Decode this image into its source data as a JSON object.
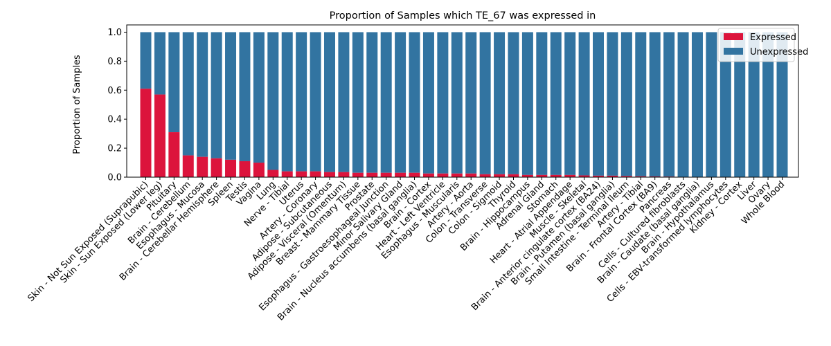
{
  "chart_data": {
    "type": "bar",
    "stacked": true,
    "title": "Proportion of Samples which TE_67 was expressed in",
    "ylabel": "Proportion of Samples",
    "xlabel": "",
    "ylim": [
      0,
      1.05
    ],
    "yticks": [
      "0.0",
      "0.2",
      "0.4",
      "0.6",
      "0.8",
      "1.0"
    ],
    "legend_position": "top-right",
    "categories": [
      "Skin - Not Sun Exposed (Suprapubic)",
      "Skin - Sun Exposed (Lower leg)",
      "Pituitary",
      "Brain - Cerebellum",
      "Esophagus - Mucosa",
      "Brain - Cerebellar Hemisphere",
      "Spleen",
      "Testis",
      "Vagina",
      "Lung",
      "Nerve - Tibial",
      "Uterus",
      "Artery - Coronary",
      "Adipose - Subcutaneous",
      "Adipose - Visceral (Omentum)",
      "Breast - Mammary Tissue",
      "Prostate",
      "Esophagus - Gastroesophageal Junction",
      "Minor Salivary Gland",
      "Brain - Nucleus accumbens (basal ganglia)",
      "Brain - Cortex",
      "Heart - Left Ventricle",
      "Esophagus - Muscularis",
      "Artery - Aorta",
      "Colon - Transverse",
      "Colon - Sigmoid",
      "Thyroid",
      "Brain - Hippocampus",
      "Adrenal Gland",
      "Stomach",
      "Heart - Atrial Appendage",
      "Muscle - Skeletal",
      "Brain - Anterior cingulate cortex (BA24)",
      "Brain - Putamen (basal ganglia)",
      "Small Intestine - Terminal Ileum",
      "Artery - Tibial",
      "Brain - Frontal Cortex (BA9)",
      "Pancreas",
      "Cells - Cultured fibroblasts",
      "Brain - Caudate (basal ganglia)",
      "Brain - Hypothalamus",
      "Cells - EBV-transformed lymphocytes",
      "Kidney - Cortex",
      "Liver",
      "Ovary",
      "Whole Blood"
    ],
    "series": [
      {
        "name": "Expressed",
        "color": "#dc143c",
        "values": [
          0.61,
          0.57,
          0.31,
          0.15,
          0.14,
          0.13,
          0.12,
          0.11,
          0.1,
          0.05,
          0.04,
          0.04,
          0.04,
          0.035,
          0.035,
          0.03,
          0.03,
          0.03,
          0.03,
          0.03,
          0.025,
          0.025,
          0.025,
          0.025,
          0.02,
          0.02,
          0.02,
          0.015,
          0.015,
          0.015,
          0.015,
          0.012,
          0.01,
          0.01,
          0.008,
          0.006,
          0.005,
          0.004,
          0.0,
          0.0,
          0.0,
          0.0,
          0.0,
          0.0,
          0.0,
          0.0
        ]
      },
      {
        "name": "Unexpressed",
        "color": "#3274a1",
        "values": [
          0.39,
          0.43,
          0.69,
          0.85,
          0.86,
          0.87,
          0.88,
          0.89,
          0.9,
          0.95,
          0.96,
          0.96,
          0.96,
          0.965,
          0.965,
          0.97,
          0.97,
          0.97,
          0.97,
          0.97,
          0.975,
          0.975,
          0.975,
          0.975,
          0.98,
          0.98,
          0.98,
          0.985,
          0.985,
          0.985,
          0.985,
          0.988,
          0.99,
          0.99,
          0.992,
          0.994,
          0.995,
          0.996,
          1.0,
          1.0,
          1.0,
          1.0,
          1.0,
          1.0,
          1.0,
          1.0
        ]
      }
    ]
  }
}
